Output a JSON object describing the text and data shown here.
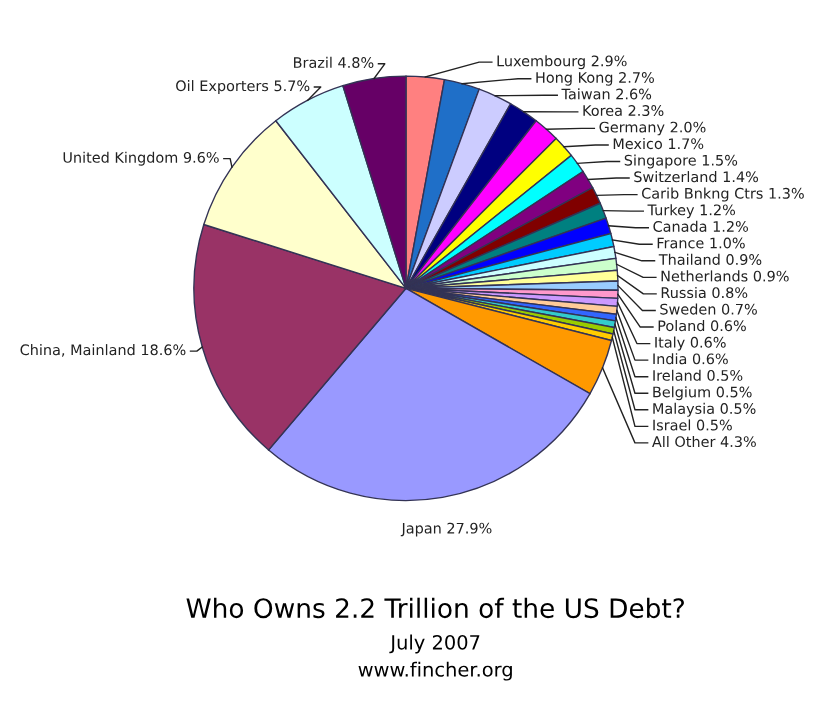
{
  "chart_data": {
    "type": "pie",
    "title": "Who Owns 2.2 Trillion of the US Debt?",
    "subtitle": "July 2007",
    "annotations": [
      "www.fincher.org"
    ],
    "categories": [
      "Luxembourg",
      "Hong Kong",
      "Taiwan",
      "Korea",
      "Germany",
      "Mexico",
      "Singapore",
      "Switzerland",
      "Carib Bnkng Ctrs",
      "Turkey",
      "Canada",
      "France",
      "Thailand",
      "Netherlands",
      "Russia",
      "Sweden",
      "Poland",
      "Italy",
      "India",
      "Ireland",
      "Belgium",
      "Malaysia",
      "Israel",
      "All Other",
      "Japan",
      "China, Mainland",
      "United Kingdom",
      "Oil Exporters",
      "Brazil"
    ],
    "values": [
      2.9,
      2.7,
      2.6,
      2.3,
      2.0,
      1.7,
      1.5,
      1.4,
      1.3,
      1.2,
      1.2,
      1.0,
      0.9,
      0.9,
      0.8,
      0.7,
      0.6,
      0.6,
      0.6,
      0.5,
      0.5,
      0.5,
      0.5,
      4.3,
      27.9,
      18.6,
      9.6,
      5.7,
      4.8
    ],
    "value_labels": [
      "2.9%",
      "2.7%",
      "2.6%",
      "2.3%",
      "2.0%",
      "1.7%",
      "1.5%",
      "1.4%",
      "1.3%",
      "1.2%",
      "1.2%",
      "1.0%",
      "0.9%",
      "0.9%",
      "0.8%",
      "0.7%",
      "0.6%",
      "0.6%",
      "0.6%",
      "0.5%",
      "0.5%",
      "0.5%",
      "0.5%",
      "4.3%",
      "27.9%",
      "18.6%",
      "9.6%",
      "5.7%",
      "4.8%"
    ],
    "colors": [
      "#ff8080",
      "#1f6fc8",
      "#ccccff",
      "#000080",
      "#ff00ff",
      "#ffff00",
      "#00ffff",
      "#800080",
      "#800000",
      "#008080",
      "#0000ff",
      "#00ccff",
      "#ccffff",
      "#ccffcc",
      "#ffff99",
      "#99ccff",
      "#ff99cc",
      "#cc99ff",
      "#ffcc99",
      "#3366ff",
      "#33cccc",
      "#99cc00",
      "#ffcc00",
      "#ff9900",
      "#9999ff",
      "#993366",
      "#ffffcc",
      "#ccffff",
      "#660066"
    ],
    "legend": false
  }
}
